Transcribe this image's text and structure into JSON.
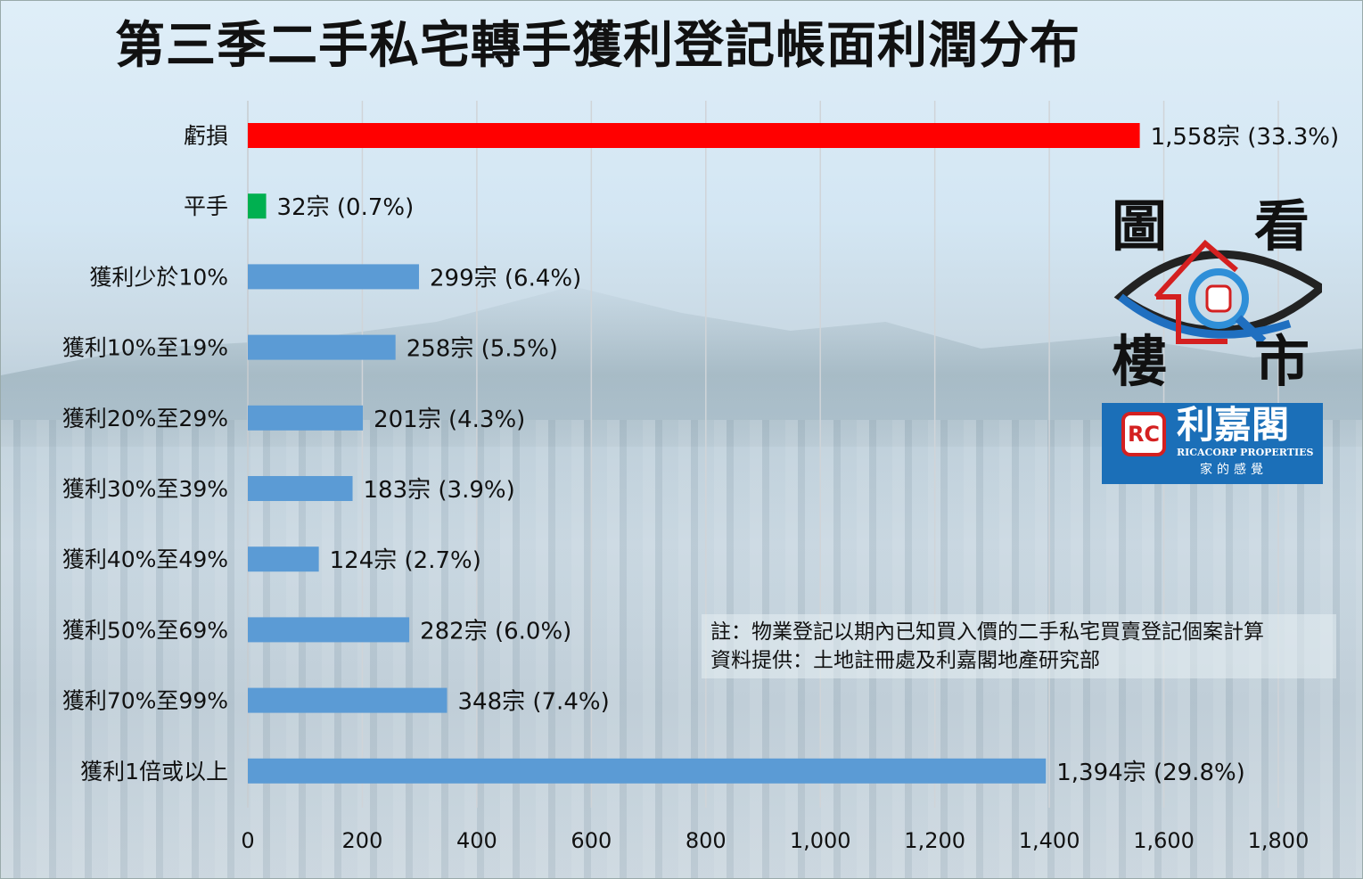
{
  "title": "第三季二手私宅轉手獲利登記帳面利潤分布",
  "note": {
    "line1": "註：物業登記以期內已知買入價的二手私宅買賣登記個案計算",
    "line2": "資料提供：土地註冊處及利嘉閣地產研究部"
  },
  "logo": {
    "chars": [
      "圖",
      "看",
      "樓",
      "市"
    ],
    "rc": "RC",
    "brand_zh": "利嘉閣",
    "brand_en": "RICACORP PROPERTIES",
    "slogan": "家的感覺"
  },
  "chart_data": {
    "type": "bar",
    "orientation": "horizontal",
    "title": "第三季二手私宅轉手獲利登記帳面利潤分布",
    "categories": [
      "虧損",
      "平手",
      "獲利少於10%",
      "獲利10%至19%",
      "獲利20%至29%",
      "獲利30%至39%",
      "獲利40%至49%",
      "獲利50%至69%",
      "獲利70%至99%",
      "獲利1倍或以上"
    ],
    "values": [
      1558,
      32,
      299,
      258,
      201,
      183,
      124,
      282,
      348,
      1394
    ],
    "percents": [
      33.3,
      0.7,
      6.4,
      5.5,
      4.3,
      3.9,
      2.7,
      6.0,
      7.4,
      29.8
    ],
    "data_labels": [
      "1,558宗 (33.3%)",
      "32宗  (0.7%)",
      "299宗  (6.4%)",
      "258宗 (5.5%)",
      "201宗  (4.3%)",
      "183宗 (3.9%)",
      "124宗  (2.7%)",
      "282宗 (6.0%)",
      "348宗  (7.4%)",
      "1,394宗  (29.8%)"
    ],
    "colors": [
      "#ff0000",
      "#00b050",
      "#5b9bd5",
      "#5b9bd5",
      "#5b9bd5",
      "#5b9bd5",
      "#5b9bd5",
      "#5b9bd5",
      "#5b9bd5",
      "#5b9bd5"
    ],
    "xlim": [
      0,
      1800
    ],
    "xticks": [
      0,
      200,
      400,
      600,
      800,
      1000,
      1200,
      1400,
      1600,
      1800
    ],
    "xtick_labels": [
      "0",
      "200",
      "400",
      "600",
      "800",
      "1,000",
      "1,200",
      "1,400",
      "1,600",
      "1,800"
    ],
    "grid": "vertical",
    "legend": "none"
  }
}
